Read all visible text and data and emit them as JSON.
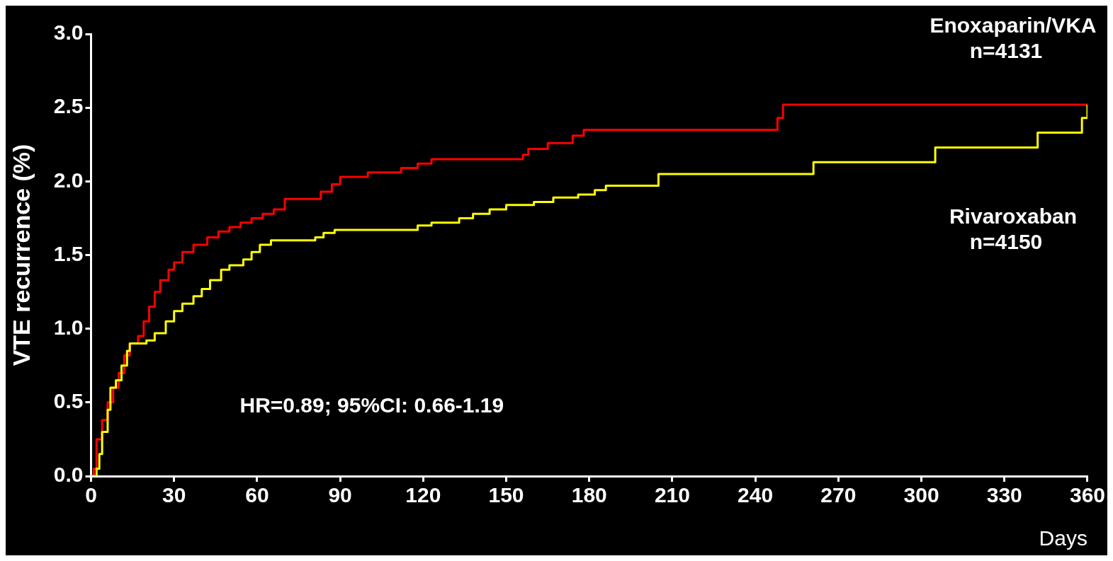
{
  "chart_data": {
    "type": "step",
    "xlabel": "Days",
    "ylabel": "VTE recurrence (%)",
    "xlim": [
      0,
      360
    ],
    "xticks": [
      0,
      30,
      60,
      90,
      120,
      150,
      180,
      210,
      240,
      270,
      300,
      330,
      360
    ],
    "ylim": [
      0,
      3
    ],
    "yticks": [
      {
        "value": 0,
        "label": "0.0"
      },
      {
        "value": 0.5,
        "label": "0.5"
      },
      {
        "value": 1,
        "label": "1.0"
      },
      {
        "value": 1.5,
        "label": "1.5"
      },
      {
        "value": 2,
        "label": "2.0"
      },
      {
        "value": 2.5,
        "label": "2.5"
      },
      {
        "value": 3,
        "label": "3.0"
      }
    ],
    "grid": false,
    "legend": false,
    "marker": "none",
    "line_style": "solid",
    "annotations": [
      "HR=0.89; 95%CI: 0.66-1.19"
    ],
    "series": [
      {
        "name": "Enoxaparin/VKA n=4131",
        "color": "#ff0000",
        "x": [
          0,
          1,
          2,
          4,
          6,
          8,
          10,
          12,
          14,
          17,
          19,
          21,
          23,
          25,
          28,
          30,
          33,
          37,
          42,
          46,
          50,
          54,
          58,
          62,
          66,
          70,
          83,
          87,
          90,
          100,
          112,
          118,
          123,
          156,
          158,
          165,
          174,
          178,
          248,
          250,
          360
        ],
        "values": [
          0,
          0.05,
          0.25,
          0.38,
          0.5,
          0.6,
          0.7,
          0.82,
          0.9,
          0.95,
          1.05,
          1.15,
          1.25,
          1.33,
          1.4,
          1.45,
          1.52,
          1.57,
          1.62,
          1.66,
          1.69,
          1.72,
          1.75,
          1.78,
          1.81,
          1.88,
          1.93,
          1.98,
          2.03,
          2.06,
          2.09,
          2.12,
          2.15,
          2.18,
          2.22,
          2.26,
          2.31,
          2.35,
          2.43,
          2.52,
          2.52
        ]
      },
      {
        "name": "Rivaroxaban n=4150",
        "color": "#ffff00",
        "x": [
          0,
          2,
          3,
          4,
          6,
          7,
          9,
          11,
          13,
          14,
          20,
          23,
          27,
          30,
          33,
          37,
          40,
          43,
          47,
          50,
          55,
          58,
          61,
          65,
          81,
          84,
          88,
          118,
          123,
          133,
          138,
          144,
          150,
          160,
          167,
          176,
          182,
          186,
          205,
          261,
          305,
          342,
          358,
          360
        ],
        "values": [
          0,
          0.05,
          0.15,
          0.3,
          0.45,
          0.6,
          0.65,
          0.75,
          0.85,
          0.9,
          0.92,
          0.97,
          1.05,
          1.12,
          1.17,
          1.22,
          1.27,
          1.33,
          1.4,
          1.43,
          1.47,
          1.52,
          1.57,
          1.6,
          1.62,
          1.65,
          1.67,
          1.7,
          1.72,
          1.75,
          1.78,
          1.81,
          1.84,
          1.86,
          1.89,
          1.91,
          1.94,
          1.97,
          2.05,
          2.13,
          2.23,
          2.33,
          2.43,
          2.52
        ]
      }
    ]
  }
}
